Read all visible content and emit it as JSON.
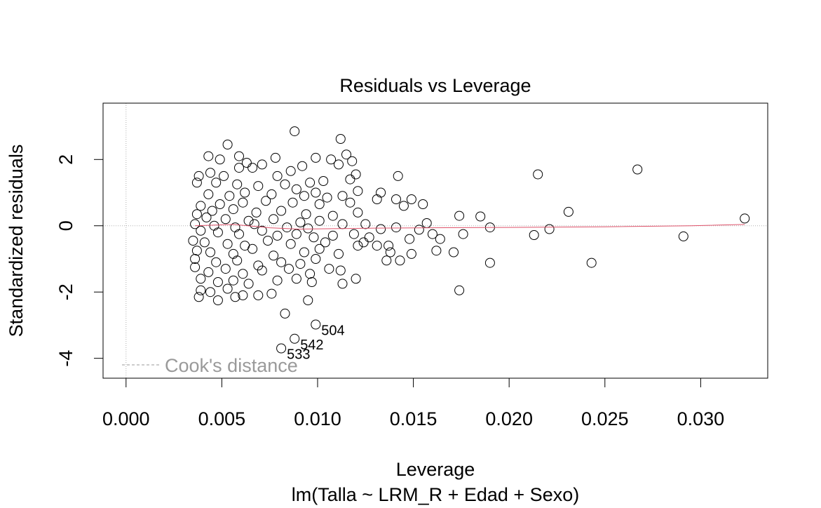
{
  "chart_data": {
    "type": "scatter",
    "title": "Residuals vs Leverage",
    "xlabel": "Leverage",
    "ylabel": "Standardized residuals",
    "subtitle": "lm(Talla ~ LRM_R + Edad + Sexo)",
    "xlim": [
      -0.0012,
      0.0335
    ],
    "ylim": [
      -4.6,
      3.7
    ],
    "x_ticks": [
      0.0,
      0.005,
      0.01,
      0.015,
      0.02,
      0.025,
      0.03
    ],
    "x_tick_labels": [
      "0.000",
      "0.005",
      "0.010",
      "0.015",
      "0.020",
      "0.025",
      "0.030"
    ],
    "y_ticks": [
      -4,
      -2,
      0,
      2
    ],
    "y_tick_labels": [
      "-4",
      "-2",
      "0",
      "2"
    ],
    "legend": {
      "label": "Cook's distance",
      "position": "bottom-left",
      "line": "dashed"
    },
    "reference_lines": {
      "horizontal": 0,
      "vertical": 0,
      "style": "dotted",
      "color": "#b0b0b0"
    },
    "point_labels": [
      {
        "text": "504",
        "x": 0.0099,
        "y": -2.98
      },
      {
        "text": "542",
        "x": 0.0088,
        "y": -3.41
      },
      {
        "text": "533",
        "x": 0.0081,
        "y": -3.7
      }
    ],
    "smooth_line": {
      "color": "#df536b",
      "points": [
        [
          0.0036,
          0.0
        ],
        [
          0.0056,
          0.04
        ],
        [
          0.0075,
          -0.06
        ],
        [
          0.009,
          -0.1
        ],
        [
          0.0105,
          -0.09
        ],
        [
          0.013,
          -0.07
        ],
        [
          0.016,
          -0.06
        ],
        [
          0.02,
          -0.05
        ],
        [
          0.025,
          -0.03
        ],
        [
          0.0295,
          0.0
        ],
        [
          0.0323,
          0.04
        ]
      ]
    },
    "series": [
      {
        "points": [
          [
            0.0088,
            2.85
          ],
          [
            0.0112,
            2.62
          ],
          [
            0.0053,
            2.45
          ],
          [
            0.0115,
            2.15
          ],
          [
            0.0043,
            2.1
          ],
          [
            0.0059,
            2.1
          ],
          [
            0.0099,
            2.05
          ],
          [
            0.0078,
            2.05
          ],
          [
            0.0107,
            2.0
          ],
          [
            0.0118,
            1.95
          ],
          [
            0.0049,
            2.0
          ],
          [
            0.0063,
            1.9
          ],
          [
            0.0086,
            1.65
          ],
          [
            0.0071,
            1.85
          ],
          [
            0.0092,
            1.8
          ],
          [
            0.0111,
            1.85
          ],
          [
            0.0059,
            1.75
          ],
          [
            0.0066,
            1.75
          ],
          [
            0.0038,
            1.5
          ],
          [
            0.0044,
            1.6
          ],
          [
            0.0051,
            1.5
          ],
          [
            0.0079,
            1.5
          ],
          [
            0.012,
            1.55
          ],
          [
            0.0142,
            1.5
          ],
          [
            0.0215,
            1.55
          ],
          [
            0.0267,
            1.7
          ],
          [
            0.0103,
            1.35
          ],
          [
            0.0117,
            1.4
          ],
          [
            0.0096,
            1.3
          ],
          [
            0.0083,
            1.25
          ],
          [
            0.0069,
            1.2
          ],
          [
            0.0058,
            1.25
          ],
          [
            0.0047,
            1.3
          ],
          [
            0.0037,
            1.3
          ],
          [
            0.0089,
            1.1
          ],
          [
            0.0099,
            1.0
          ],
          [
            0.0121,
            1.05
          ],
          [
            0.0133,
            1.0
          ],
          [
            0.0113,
            0.9
          ],
          [
            0.0105,
            0.85
          ],
          [
            0.0093,
            0.9
          ],
          [
            0.0076,
            0.95
          ],
          [
            0.0062,
            1.0
          ],
          [
            0.0054,
            0.9
          ],
          [
            0.0043,
            0.95
          ],
          [
            0.0131,
            0.8
          ],
          [
            0.0141,
            0.8
          ],
          [
            0.0149,
            0.8
          ],
          [
            0.0155,
            0.65
          ],
          [
            0.0145,
            0.6
          ],
          [
            0.0117,
            0.7
          ],
          [
            0.0101,
            0.65
          ],
          [
            0.0087,
            0.7
          ],
          [
            0.0073,
            0.75
          ],
          [
            0.0061,
            0.7
          ],
          [
            0.0049,
            0.65
          ],
          [
            0.0039,
            0.6
          ],
          [
            0.0045,
            0.45
          ],
          [
            0.0056,
            0.5
          ],
          [
            0.0068,
            0.4
          ],
          [
            0.0081,
            0.45
          ],
          [
            0.0094,
            0.35
          ],
          [
            0.0108,
            0.3
          ],
          [
            0.0121,
            0.4
          ],
          [
            0.0174,
            0.3
          ],
          [
            0.0185,
            0.28
          ],
          [
            0.0231,
            0.42
          ],
          [
            0.0323,
            0.22
          ],
          [
            0.0037,
            0.35
          ],
          [
            0.0042,
            0.25
          ],
          [
            0.0052,
            0.2
          ],
          [
            0.0064,
            0.15
          ],
          [
            0.0077,
            0.2
          ],
          [
            0.0091,
            0.1
          ],
          [
            0.0101,
            0.15
          ],
          [
            0.0113,
            0.05
          ],
          [
            0.0125,
            0.05
          ],
          [
            0.0157,
            0.08
          ],
          [
            0.0036,
            0.05
          ],
          [
            0.0046,
            0.0
          ],
          [
            0.0057,
            -0.05
          ],
          [
            0.0067,
            0.05
          ],
          [
            0.0084,
            -0.05
          ],
          [
            0.0095,
            -0.08
          ],
          [
            0.0133,
            -0.1
          ],
          [
            0.0141,
            -0.05
          ],
          [
            0.0153,
            -0.12
          ],
          [
            0.016,
            -0.25
          ],
          [
            0.0176,
            -0.25
          ],
          [
            0.019,
            -0.05
          ],
          [
            0.0221,
            -0.1
          ],
          [
            0.0213,
            -0.28
          ],
          [
            0.0291,
            -0.32
          ],
          [
            0.0039,
            -0.15
          ],
          [
            0.0048,
            -0.2
          ],
          [
            0.0059,
            -0.25
          ],
          [
            0.0071,
            -0.15
          ],
          [
            0.0079,
            -0.3
          ],
          [
            0.0089,
            -0.25
          ],
          [
            0.0098,
            -0.35
          ],
          [
            0.0108,
            -0.3
          ],
          [
            0.0119,
            -0.25
          ],
          [
            0.0127,
            -0.35
          ],
          [
            0.0035,
            -0.45
          ],
          [
            0.0041,
            -0.5
          ],
          [
            0.0053,
            -0.55
          ],
          [
            0.0062,
            -0.6
          ],
          [
            0.0074,
            -0.45
          ],
          [
            0.0086,
            -0.55
          ],
          [
            0.0104,
            -0.5
          ],
          [
            0.0121,
            -0.6
          ],
          [
            0.0124,
            -0.5
          ],
          [
            0.0131,
            -0.6
          ],
          [
            0.0137,
            -0.6
          ],
          [
            0.0148,
            -0.4
          ],
          [
            0.0164,
            -0.4
          ],
          [
            0.0037,
            -0.75
          ],
          [
            0.0044,
            -0.8
          ],
          [
            0.0056,
            -0.85
          ],
          [
            0.0066,
            -0.7
          ],
          [
            0.0077,
            -0.9
          ],
          [
            0.0093,
            -0.8
          ],
          [
            0.0101,
            -0.7
          ],
          [
            0.0111,
            -0.85
          ],
          [
            0.0138,
            -0.8
          ],
          [
            0.0149,
            -0.85
          ],
          [
            0.0162,
            -0.75
          ],
          [
            0.0171,
            -0.8
          ],
          [
            0.0036,
            -1.0
          ],
          [
            0.0047,
            -1.1
          ],
          [
            0.0058,
            -1.05
          ],
          [
            0.0069,
            -1.2
          ],
          [
            0.0081,
            -1.1
          ],
          [
            0.0091,
            -1.15
          ],
          [
            0.0099,
            -1.0
          ],
          [
            0.0136,
            -1.05
          ],
          [
            0.0143,
            -1.05
          ],
          [
            0.019,
            -1.12
          ],
          [
            0.0243,
            -1.12
          ],
          [
            0.0036,
            -1.25
          ],
          [
            0.0043,
            -1.4
          ],
          [
            0.0052,
            -1.3
          ],
          [
            0.0061,
            -1.45
          ],
          [
            0.0071,
            -1.35
          ],
          [
            0.0085,
            -1.3
          ],
          [
            0.0096,
            -1.45
          ],
          [
            0.0106,
            -1.3
          ],
          [
            0.0112,
            -1.35
          ],
          [
            0.0039,
            -1.6
          ],
          [
            0.0048,
            -1.7
          ],
          [
            0.0056,
            -1.65
          ],
          [
            0.0064,
            -1.75
          ],
          [
            0.0079,
            -1.65
          ],
          [
            0.0089,
            -1.6
          ],
          [
            0.0097,
            -1.7
          ],
          [
            0.0113,
            -1.75
          ],
          [
            0.012,
            -1.6
          ],
          [
            0.0039,
            -1.95
          ],
          [
            0.0044,
            -2.0
          ],
          [
            0.0053,
            -1.9
          ],
          [
            0.0061,
            -2.1
          ],
          [
            0.0069,
            -2.1
          ],
          [
            0.0076,
            -2.05
          ],
          [
            0.0095,
            -2.25
          ],
          [
            0.0174,
            -1.95
          ],
          [
            0.0038,
            -2.15
          ],
          [
            0.0048,
            -2.25
          ],
          [
            0.0057,
            -2.15
          ],
          [
            0.0083,
            -2.65
          ],
          [
            0.0099,
            -2.98
          ],
          [
            0.0088,
            -3.41
          ],
          [
            0.0081,
            -3.7
          ]
        ]
      }
    ]
  }
}
